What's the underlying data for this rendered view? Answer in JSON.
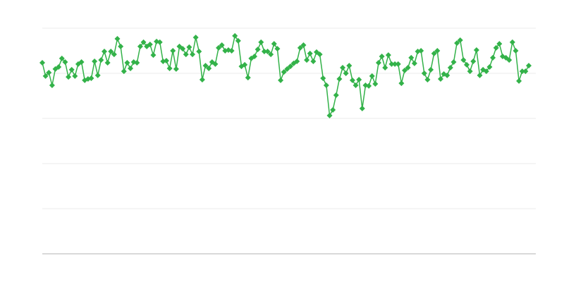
{
  "chart_data": {
    "type": "line",
    "title": "",
    "xlabel": "",
    "ylabel": "",
    "ylim": [
      0,
      100
    ],
    "grid": true,
    "legend": "none",
    "marker": "diamond",
    "colors": {
      "series": "#33b249",
      "grid": "#ebebeb",
      "axis": "#b3b3b3"
    },
    "series": [
      {
        "values": [
          84.7,
          78.8,
          80.3,
          74.7,
          81.9,
          82.8,
          86.6,
          85,
          78.4,
          81.6,
          78.8,
          84.1,
          85,
          76.9,
          77.5,
          77.8,
          85.3,
          79.1,
          85.9,
          89.7,
          84.7,
          89.7,
          88.4,
          95.3,
          91.9,
          80.9,
          84.7,
          82.2,
          85,
          84.7,
          91.9,
          93.8,
          91.9,
          92.8,
          88.1,
          94.1,
          93.8,
          85.3,
          85.6,
          82.2,
          90,
          81.9,
          91.9,
          90.9,
          88.4,
          91.6,
          88.4,
          95.9,
          89.7,
          77.2,
          83.4,
          82.2,
          85,
          84.1,
          91.3,
          92.5,
          90,
          90.3,
          90,
          96.6,
          94.4,
          83.1,
          83.8,
          78.1,
          86.6,
          87.5,
          90.6,
          93.8,
          89.7,
          89.7,
          88.4,
          93.1,
          90.9,
          76.9,
          80.6,
          81.9,
          83.1,
          84.4,
          85.3,
          91.3,
          92.5,
          85.9,
          88.8,
          85.3,
          89.4,
          88.4,
          77.8,
          74.7,
          61.3,
          63.8,
          70.3,
          77.5,
          82.5,
          80,
          83.4,
          76.9,
          74.7,
          77.2,
          64.4,
          74.7,
          74.4,
          78.8,
          75.3,
          84.7,
          87.5,
          82.5,
          88.1,
          84.1,
          84.1,
          84.1,
          75.6,
          81.3,
          82.5,
          86.9,
          84.4,
          89.7,
          90,
          80,
          77.2,
          81.6,
          88.8,
          90,
          77.5,
          79.7,
          79.1,
          82.5,
          85,
          93.4,
          94.7,
          85.9,
          83.8,
          80.9,
          85.3,
          90.3,
          79.1,
          81.6,
          80.9,
          82.8,
          86.9,
          91.3,
          93.1,
          87.5,
          86.9,
          85.9,
          93.8,
          90,
          76.6,
          80.9,
          80.9,
          83.4
        ]
      }
    ]
  }
}
